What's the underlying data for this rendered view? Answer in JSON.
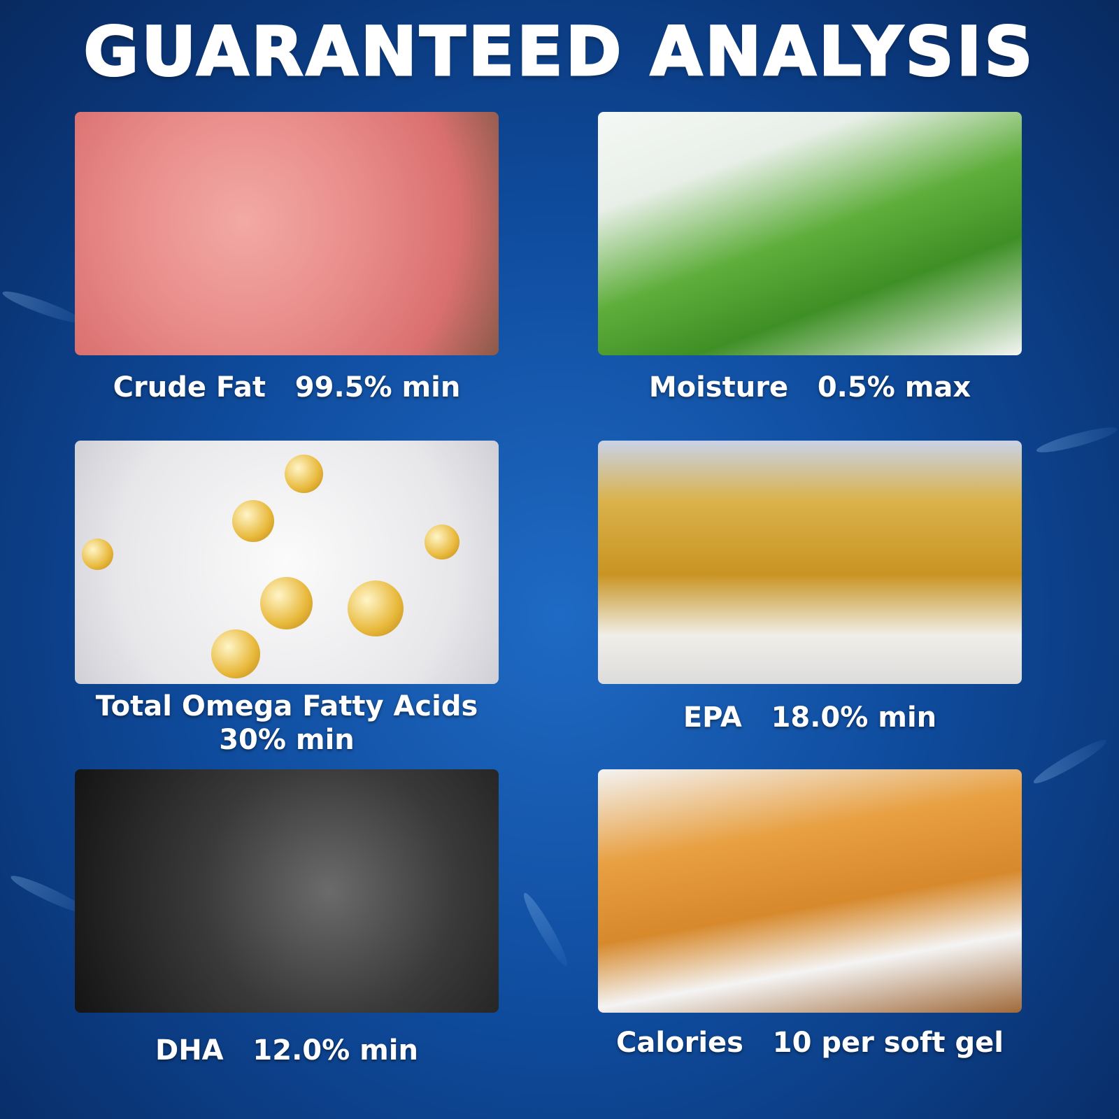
{
  "title": "GUARANTEED ANALYSIS",
  "items": [
    {
      "label": "Crude Fat   99.5% min",
      "image": "raw-meat"
    },
    {
      "label": "Moisture   0.5% max",
      "image": "green-leaf-in-water"
    },
    {
      "label": "Total Omega Fatty Acids\n30% min",
      "image": "golden-molecules"
    },
    {
      "label": "EPA   18.0% min",
      "image": "fish-oil-softgels"
    },
    {
      "label": "DHA   12.0% min",
      "image": "fish-on-ice"
    },
    {
      "label": "Calories   10 per soft gel",
      "image": "fried-nuggets"
    }
  ]
}
